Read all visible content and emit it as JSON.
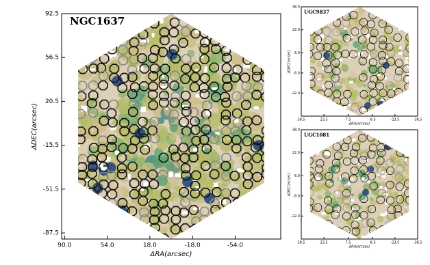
{
  "chart_data": [
    {
      "type": "image",
      "title": "NGC1637",
      "xlabel": "ΔRA(arcsec)",
      "ylabel": "ΔDEC(arcsec)",
      "xlim": [
        92.5,
        -92.5
      ],
      "ylim": [
        -92.5,
        92.5
      ],
      "xticks": [
        {
          "value": 90,
          "label": "90.0"
        },
        {
          "value": 54,
          "label": "54.0"
        },
        {
          "value": 18,
          "label": "18.0"
        },
        {
          "value": -18,
          "label": "-18.0"
        },
        {
          "value": -54,
          "label": "-54.0"
        }
      ],
      "yticks": [
        92.5,
        56.5,
        20.5,
        -15.5,
        -51.5,
        -87.5
      ]
    },
    {
      "type": "image",
      "title": "UGC9837",
      "xlabel": "ΔRA(arcsec)",
      "ylabel": "ΔDEC(arcsec)",
      "xlim": [
        38.5,
        -38.5
      ],
      "ylim": [
        -38,
        38
      ],
      "xticks": [
        38.5,
        23.5,
        7.5,
        -8.5,
        -23.5,
        -38.5
      ],
      "yticks": [
        {
          "value": 38,
          "label": "38.0"
        },
        {
          "value": 22,
          "label": "22.0"
        },
        {
          "value": 6,
          "label": "6.0"
        },
        {
          "value": -8,
          "label": "-8.0"
        },
        {
          "value": -22,
          "label": "-22.0"
        }
      ]
    },
    {
      "type": "image",
      "title": "UGC1081",
      "xlabel": "ΔRA(arcsec)",
      "ylabel": "ΔDEC(arcsec)",
      "xlim": [
        38.5,
        -38.5
      ],
      "ylim": [
        -38,
        38
      ],
      "xticks": [
        38.5,
        23.5,
        7.5,
        -8.5,
        -23.5,
        -38.5
      ],
      "yticks": [
        {
          "value": 38,
          "label": "38.0"
        },
        {
          "value": 22,
          "label": "22.0"
        },
        {
          "value": 6,
          "label": "6.0"
        },
        {
          "value": -8,
          "label": "-8.0"
        },
        {
          "value": -22,
          "label": "-22.0"
        }
      ]
    }
  ]
}
